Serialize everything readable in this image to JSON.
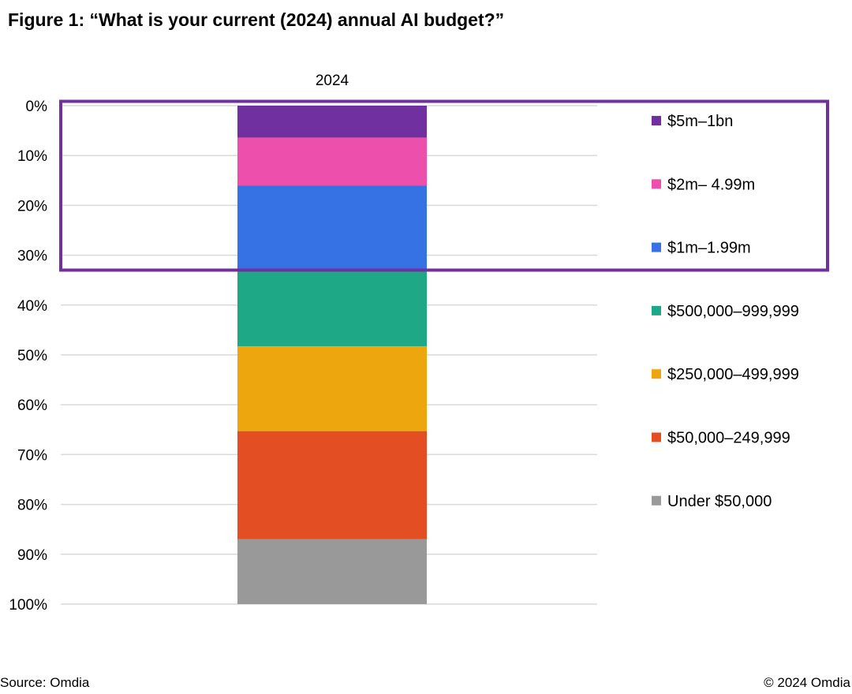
{
  "header": {
    "title": "Figure 1: “What is your current (2024) annual AI budget?”"
  },
  "footer": {
    "source": "Source: Omdia",
    "copyright": "© 2024 Omdia"
  },
  "highlight_color": "#7030a0",
  "chart_data": {
    "type": "bar",
    "stacked": true,
    "orientation": "vertical",
    "title": "Figure 1: “What is your current (2024) annual AI budget?”",
    "categories": [
      "2024"
    ],
    "ylabel": "",
    "xlabel": "",
    "ylim": [
      0,
      100
    ],
    "y_inverted": true,
    "y_tick_labels": [
      "0%",
      "10%",
      "20%",
      "30%",
      "40%",
      "50%",
      "60%",
      "70%",
      "80%",
      "90%",
      "100%"
    ],
    "grid": true,
    "legend_position": "right",
    "series": [
      {
        "name": "$5m–1bn",
        "values": [
          6.4
        ],
        "color": "#7030a0"
      },
      {
        "name": "$2m– 4.99m",
        "values": [
          9.6
        ],
        "color": "#ec4fac"
      },
      {
        "name": "$1m–1.99m",
        "values": [
          17.2
        ],
        "color": "#3672e3"
      },
      {
        "name": "$500,000–999,999",
        "values": [
          15.1
        ],
        "color": "#1fa886"
      },
      {
        "name": "$250,000–499,999",
        "values": [
          17.0
        ],
        "color": "#eea60e"
      },
      {
        "name": "$50,000–249,999",
        "values": [
          21.7
        ],
        "color": "#e34f22"
      },
      {
        "name": "Under $50,000",
        "values": [
          13.0
        ],
        "color": "#999999"
      }
    ],
    "highlighted_series": [
      "$5m–1bn",
      "$2m– 4.99m",
      "$1m–1.99m"
    ]
  }
}
